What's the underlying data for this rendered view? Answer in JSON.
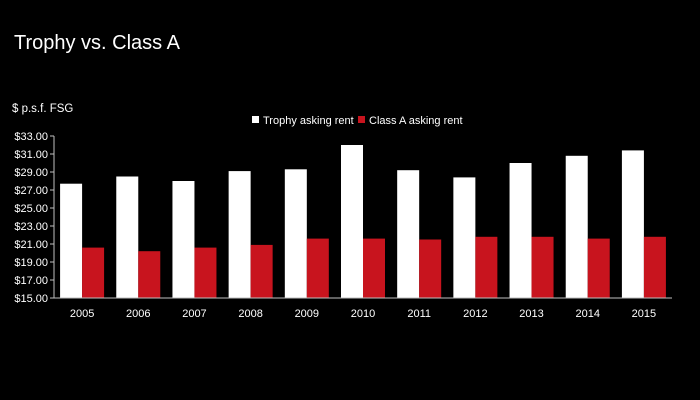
{
  "slide": {
    "title": "Trophy vs. Class A",
    "unit_label": "$ p.s.f. FSG"
  },
  "colors": {
    "background": "#000000",
    "trophy": "#ffffff",
    "class_a": "#c8141e",
    "axis": "#bfbfbf"
  },
  "chart_data": {
    "type": "bar",
    "categories": [
      "2005",
      "2006",
      "2007",
      "2008",
      "2009",
      "2010",
      "2011",
      "2012",
      "2013",
      "2014",
      "2015"
    ],
    "series": [
      {
        "name": "Trophy asking rent",
        "values": [
          27.7,
          28.5,
          28.0,
          29.1,
          29.3,
          32.0,
          29.2,
          28.4,
          30.0,
          30.8,
          31.4
        ]
      },
      {
        "name": "Class A asking rent",
        "values": [
          20.6,
          20.2,
          20.6,
          20.9,
          21.6,
          21.6,
          21.5,
          21.8,
          21.8,
          21.6,
          21.8
        ]
      }
    ],
    "ylim": [
      15,
      33
    ],
    "yticks": [
      "$15.00",
      "$17.00",
      "$19.00",
      "$21.00",
      "$23.00",
      "$25.00",
      "$27.00",
      "$29.00",
      "$31.00",
      "$33.00"
    ],
    "ytick_values": [
      15,
      17,
      19,
      21,
      23,
      25,
      27,
      29,
      31,
      33
    ],
    "grid": false,
    "legend_position": "top-center"
  }
}
